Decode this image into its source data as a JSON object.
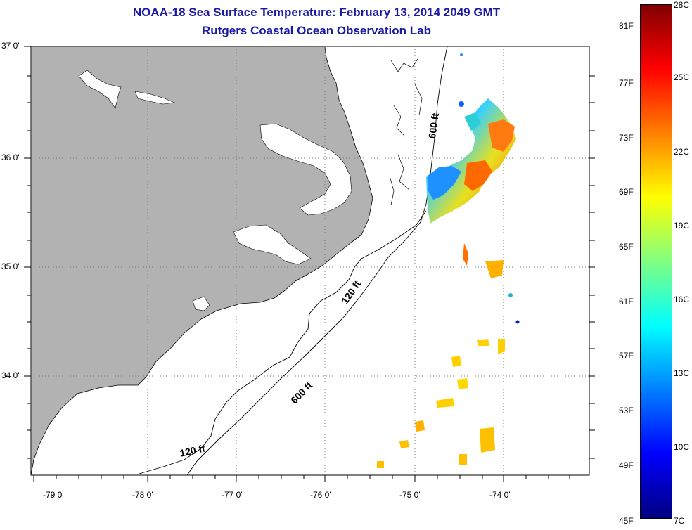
{
  "title_line1": "NOAA-18 Sea Surface Temperature:  February 13, 2014 2049 GMT",
  "title_line2": "Rutgers Coastal Ocean Observation Lab",
  "lat_labels": [
    "37 0'",
    "36 0'",
    "35 0'",
    "34 0'"
  ],
  "lon_labels": [
    "-79 0'",
    "-78 0'",
    "-77 0'",
    "-76 0'",
    "-75 0'",
    "-74 0'"
  ],
  "isobath_labels": [
    "600 ft",
    "120 ft",
    "600 ft",
    "120 ft"
  ],
  "colorbar": {
    "fahrenheit_labels": [
      "81F",
      "77F",
      "73F",
      "69F",
      "65F",
      "61F",
      "57F",
      "53F",
      "49F",
      "45F"
    ],
    "celsius_labels": [
      "28C",
      "25C",
      "22C",
      "19C",
      "16C",
      "13C",
      "10C",
      "7C"
    ],
    "colors": [
      "#800000",
      "#ff0000",
      "#ff8000",
      "#ffff00",
      "#80ff80",
      "#00ffff",
      "#0080ff",
      "#0000ff",
      "#000080"
    ]
  },
  "colors": {
    "land": "#b2b2b2",
    "title": "#1a1aa6"
  }
}
